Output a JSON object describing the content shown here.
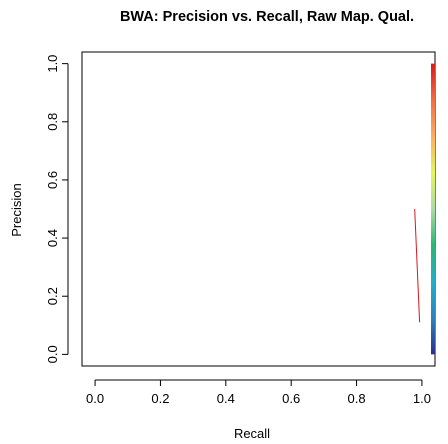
{
  "chart_data": {
    "type": "line",
    "title": "BWA: Precision vs. Recall, Raw Map. Qual.",
    "xlabel": "Recall",
    "ylabel": "Precision",
    "xlim": [
      -0.04,
      1.04
    ],
    "ylim": [
      -0.04,
      1.04
    ],
    "x_ticks": [
      "0.0",
      "0.2",
      "0.4",
      "0.6",
      "0.8",
      "1.0"
    ],
    "y_ticks": [
      "0.0",
      "0.2",
      "0.4",
      "0.6",
      "0.8",
      "1.0"
    ],
    "grid": false,
    "series": [
      {
        "color": "#d7191c",
        "x": [
          0.978,
          0.993
        ],
        "y": [
          0.5,
          0.11
        ]
      }
    ],
    "colorbar": {
      "position": "right",
      "range": [
        0,
        1
      ],
      "colors": [
        "#2b2f8f",
        "#2b83ba",
        "#1fb0c9",
        "#2bb673",
        "#abdda4",
        "#e6f55a",
        "#fdae61",
        "#f46d43",
        "#d7191c"
      ]
    }
  }
}
